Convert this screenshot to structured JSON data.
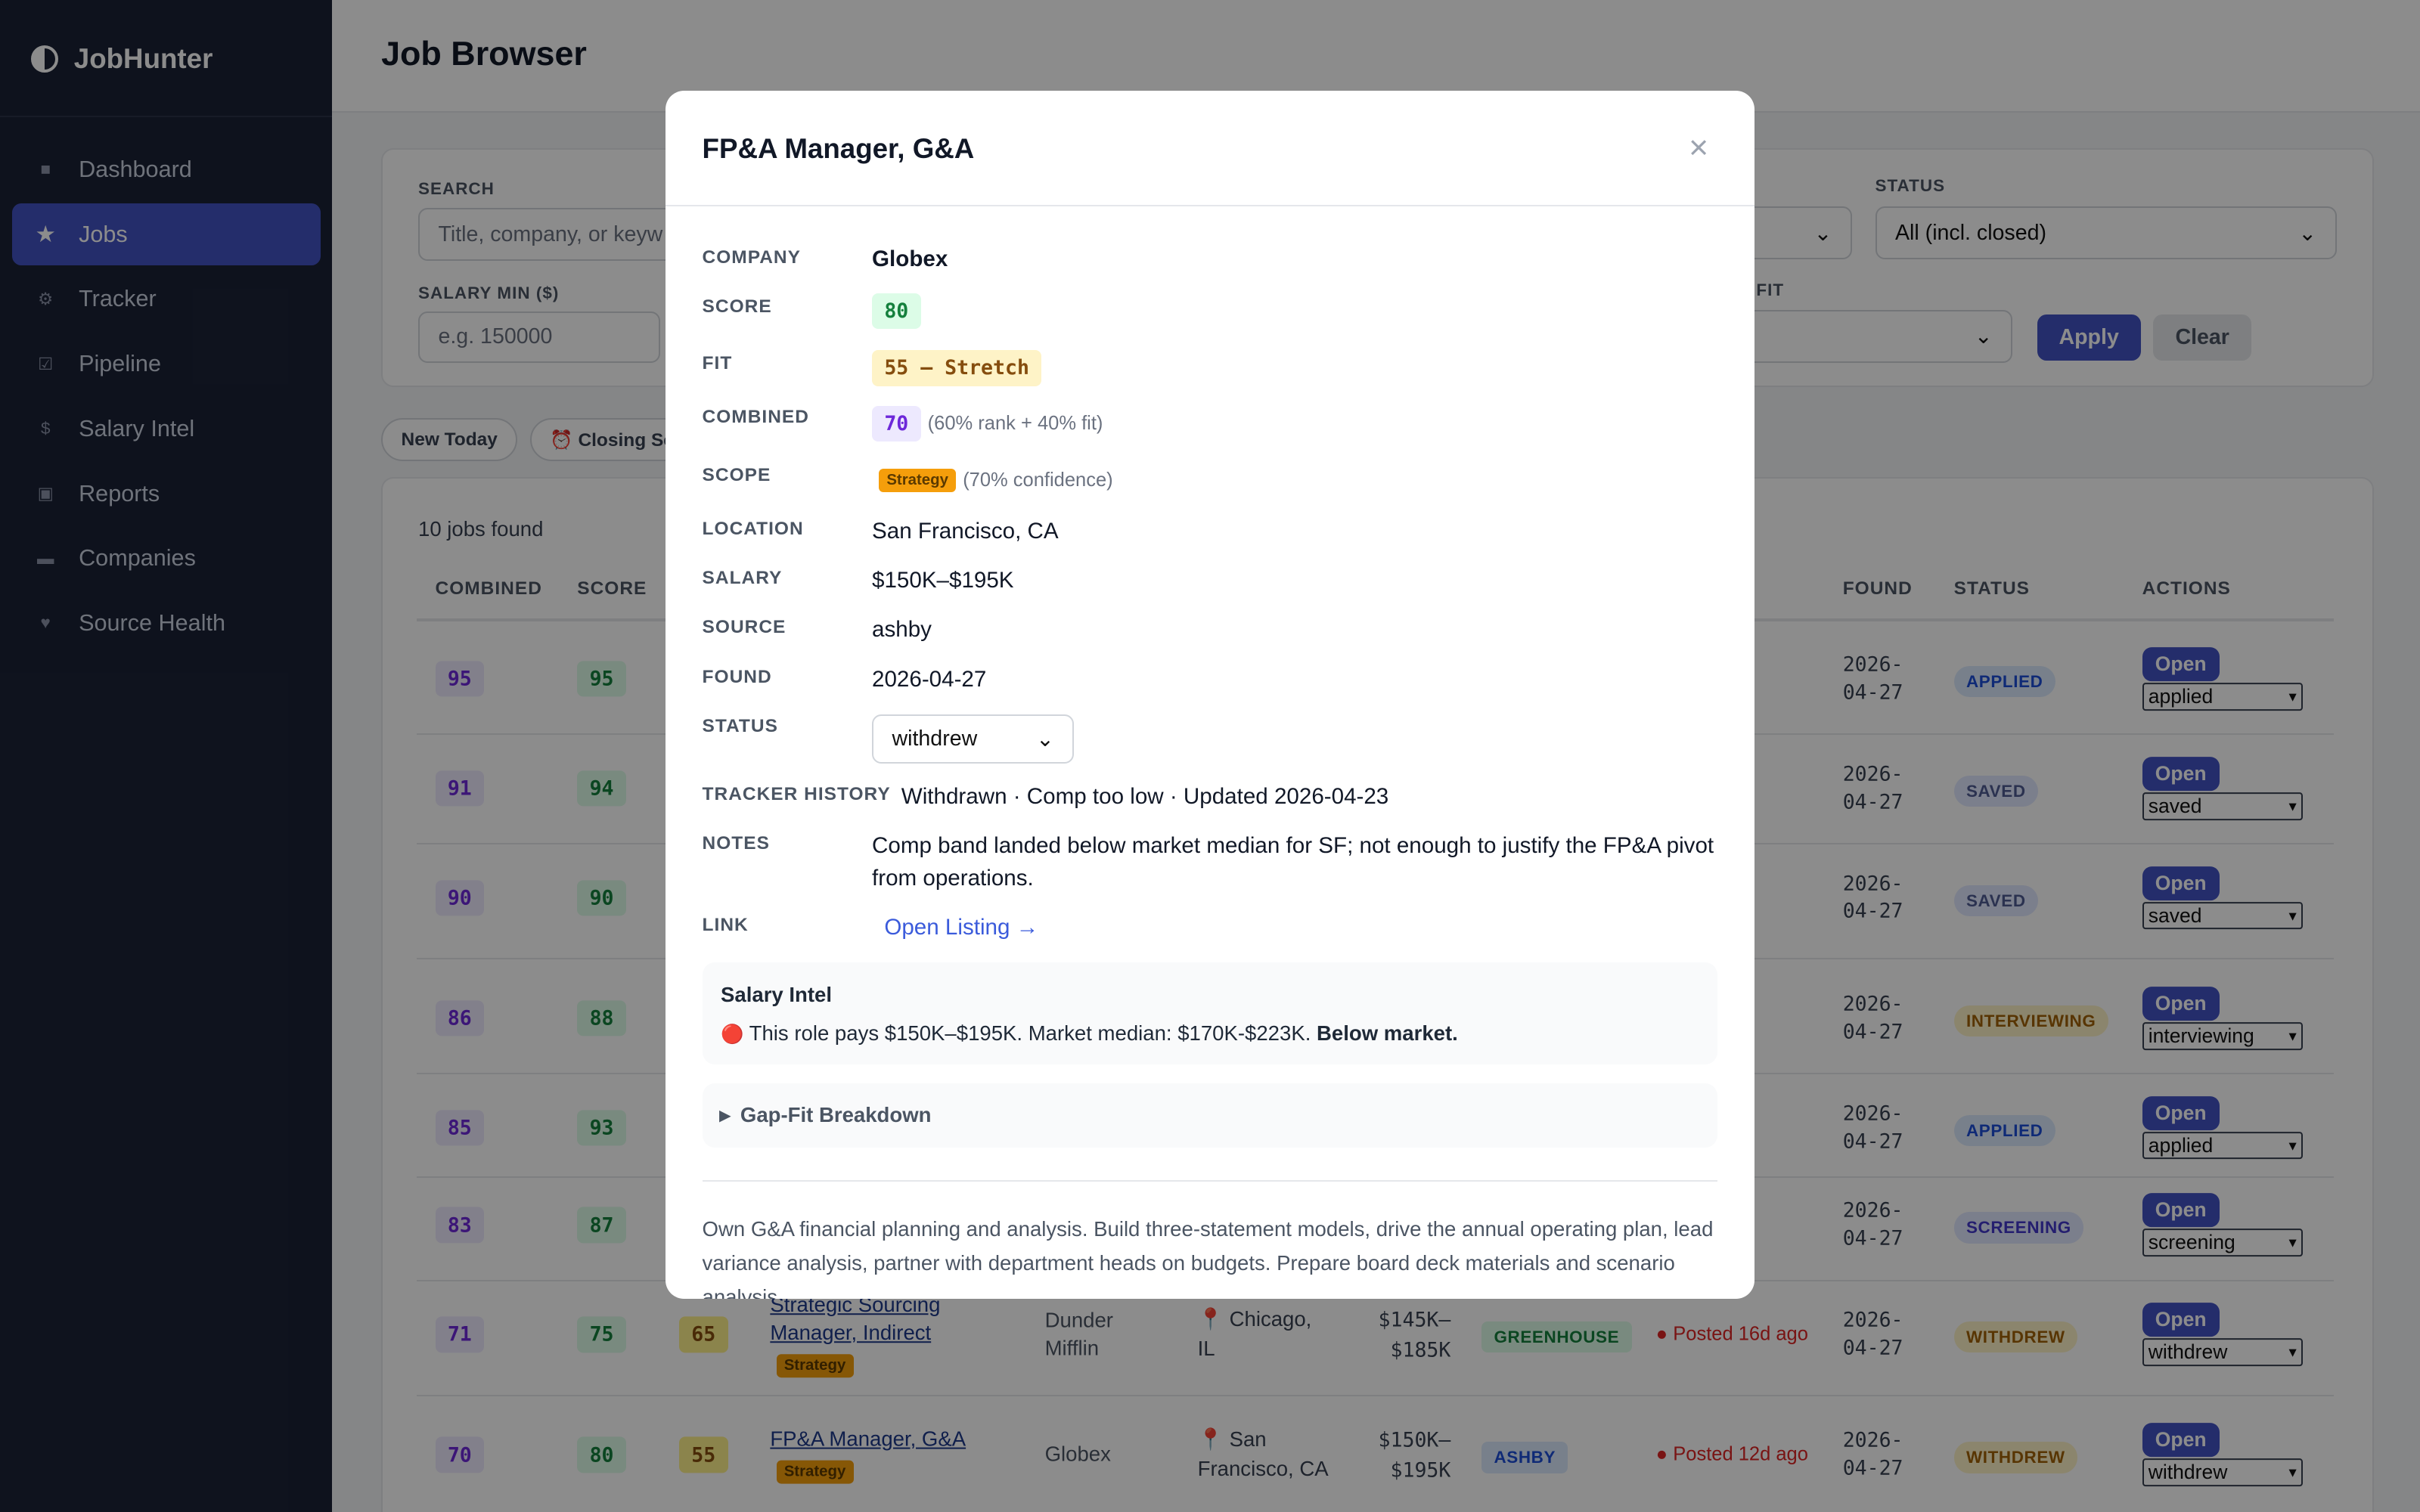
{
  "sidebar": {
    "brand": "JobHunter",
    "nav": [
      {
        "icon": "■",
        "label": "Dashboard"
      },
      {
        "icon": "★",
        "label": "Jobs"
      },
      {
        "icon": "⚙",
        "label": "Tracker"
      },
      {
        "icon": "☑",
        "label": "Pipeline"
      },
      {
        "icon": "$",
        "label": "Salary Intel"
      },
      {
        "icon": "▣",
        "label": "Reports"
      },
      {
        "icon": "▬",
        "label": "Companies"
      },
      {
        "icon": "♥",
        "label": "Source Health"
      }
    ]
  },
  "header": {
    "title": "Job Browser"
  },
  "filters": {
    "search_label": "SEARCH",
    "search_placeholder": "Title, company, or keyw",
    "salary_label": "SALARY MIN ($)",
    "salary_placeholder": "e.g. 150000",
    "status_label": "STATUS",
    "status_value": "All (incl. closed)",
    "fit_label": "FIT",
    "apply": "Apply",
    "clear": "Clear"
  },
  "chips": [
    "New Today",
    "⏰ Closing Sc"
  ],
  "table": {
    "count": "10 jobs found",
    "headers": {
      "combined": "COMBINED",
      "score": "SCORE",
      "found": "FOUND",
      "status": "STATUS",
      "actions": "ACTIONS"
    },
    "open_label": "Open",
    "rows": [
      {
        "combined": 95,
        "score": 95,
        "found": "2026-04-27",
        "status": "APPLIED",
        "select": "applied"
      },
      {
        "combined": 91,
        "score": 94,
        "found": "2026-04-27",
        "status": "SAVED",
        "select": "saved"
      },
      {
        "combined": 90,
        "score": 90,
        "found": "2026-04-27",
        "status": "SAVED",
        "select": "saved"
      },
      {
        "combined": 86,
        "score": 88,
        "found": "2026-04-27",
        "status": "INTERVIEWING",
        "select": "interviewing"
      },
      {
        "combined": 85,
        "score": 93,
        "found": "2026-04-27",
        "status": "APPLIED",
        "select": "applied"
      },
      {
        "combined": 83,
        "score": 87,
        "found": "2026-04-27",
        "status": "SCREENING",
        "select": "screening"
      },
      {
        "combined": 71,
        "score": 75,
        "fit": 65,
        "title": "Strategic Sourcing Manager, Indirect",
        "scope": "Strategy",
        "company": "Dunder Mifflin",
        "location": "Chicago, IL",
        "salary": "$145K–$185K",
        "source": "GREENHOUSE",
        "posted": "Posted 16d ago",
        "found": "2026-04-27",
        "status": "WITHDREW",
        "select": "withdrew"
      },
      {
        "combined": 70,
        "score": 80,
        "fit": 55,
        "title": "FP&A Manager, G&A",
        "scope": "Strategy",
        "company": "Globex",
        "location": "San Francisco, CA",
        "salary": "$150K–$195K",
        "source": "ASHBY",
        "posted": "Posted 12d ago",
        "found": "2026-04-27",
        "status": "WITHDREW",
        "select": "withdrew"
      }
    ]
  },
  "modal": {
    "title": "FP&A Manager, G&A",
    "close": "×",
    "labels": {
      "company": "COMPANY",
      "score": "SCORE",
      "fit": "FIT",
      "combined": "COMBINED",
      "scope": "SCOPE",
      "location": "LOCATION",
      "salary": "SALARY",
      "source": "SOURCE",
      "found": "FOUND",
      "status": "STATUS",
      "history": "TRACKER HISTORY",
      "notes": "NOTES",
      "link": "LINK"
    },
    "company": "Globex",
    "score": 80,
    "fit": "55 — Stretch",
    "combined": 70,
    "combined_note": "(60% rank + 40% fit)",
    "scope": "Strategy",
    "scope_note": "(70% confidence)",
    "location": "San Francisco, CA",
    "salary": "$150K–$195K",
    "source": "ashby",
    "found": "2026-04-27",
    "status": "withdrew",
    "history": "Withdrawn · Comp too low · Updated 2026-04-23",
    "notes": "Comp band landed below market median for SF; not enough to justify the FP&A pivot from operations.",
    "link": "Open Listing →",
    "salary_intel": {
      "title": "Salary Intel",
      "icon": "🔴",
      "text": "This role pays $150K–$195K. Market median: $170K-$223K.",
      "verdict": "Below market."
    },
    "gap_fit": "Gap-Fit Breakdown",
    "description": "Own G&A financial planning and analysis. Build three-statement models, drive the annual operating plan, lead variance analysis, partner with department heads on budgets. Prepare board deck materials and scenario analysis."
  }
}
